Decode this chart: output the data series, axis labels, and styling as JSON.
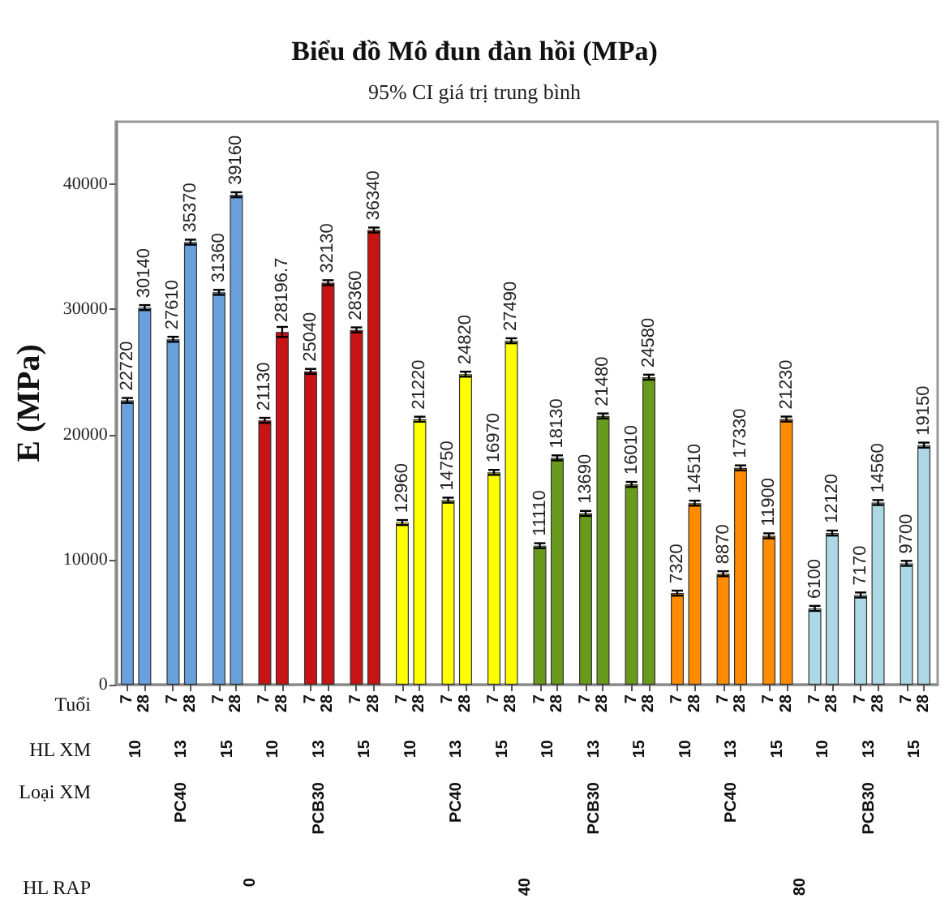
{
  "chart_data": {
    "type": "bar",
    "title": "Biểu đồ Mô đun đàn hồi (MPa)",
    "subtitle": "95% CI giá trị trung bình",
    "ylabel": "E (MPa)",
    "categories": [
      "7",
      "28",
      "7",
      "28",
      "7",
      "28",
      "7",
      "28",
      "7",
      "28",
      "7",
      "28",
      "7",
      "28",
      "7",
      "28",
      "7",
      "28",
      "7",
      "28",
      "7",
      "28",
      "7",
      "28",
      "7",
      "28",
      "7",
      "28",
      "7",
      "28",
      "7",
      "28",
      "7",
      "28",
      "7",
      "28"
    ],
    "values": [
      22720,
      30140,
      27610,
      35370,
      31360,
      39160,
      21130,
      28196.7,
      25040,
      32130,
      28360,
      36340,
      12960,
      21220,
      14750,
      24820,
      16970,
      27490,
      11110,
      18130,
      13690,
      21480,
      16010,
      24580,
      7320,
      14510,
      8870,
      17330,
      11900,
      21230,
      6100,
      12120,
      7170,
      14560,
      9700,
      19150
    ],
    "colors": [
      "#6aa0dc",
      "#6aa0dc",
      "#6aa0dc",
      "#6aa0dc",
      "#6aa0dc",
      "#6aa0dc",
      "#c81414",
      "#c81414",
      "#c81414",
      "#c81414",
      "#c81414",
      "#c81414",
      "#ffff00",
      "#ffff00",
      "#ffff00",
      "#ffff00",
      "#ffff00",
      "#ffff00",
      "#6a9a1c",
      "#6a9a1c",
      "#6a9a1c",
      "#6a9a1c",
      "#6a9a1c",
      "#6a9a1c",
      "#ff8c00",
      "#ff8c00",
      "#ff8c00",
      "#ff8c00",
      "#ff8c00",
      "#ff8c00",
      "#add8e6",
      "#add8e6",
      "#add8e6",
      "#add8e6",
      "#add8e6",
      "#add8e6"
    ],
    "errors": [
      200,
      200,
      200,
      200,
      200,
      200,
      200,
      400,
      200,
      200,
      200,
      200,
      200,
      200,
      200,
      200,
      200,
      200,
      200,
      200,
      200,
      200,
      200,
      200,
      200,
      200,
      200,
      200,
      200,
      200,
      200,
      200,
      200,
      200,
      200,
      200
    ],
    "ylim": [
      0,
      45000
    ],
    "yticks": [
      0,
      10000,
      20000,
      30000,
      40000
    ],
    "data_labels": true,
    "annotations": [
      "Tuổi",
      "HL XM",
      "Loại XM",
      "HL RAP",
      "10",
      "13",
      "15",
      "10",
      "13",
      "15",
      "10",
      "13",
      "15",
      "10",
      "13",
      "15",
      "10",
      "13",
      "15",
      "10",
      "13",
      "15",
      "PC40",
      "PCB30",
      "PC40",
      "PCB30",
      "PC40",
      "PCB30",
      "0",
      "40",
      "80"
    ]
  }
}
